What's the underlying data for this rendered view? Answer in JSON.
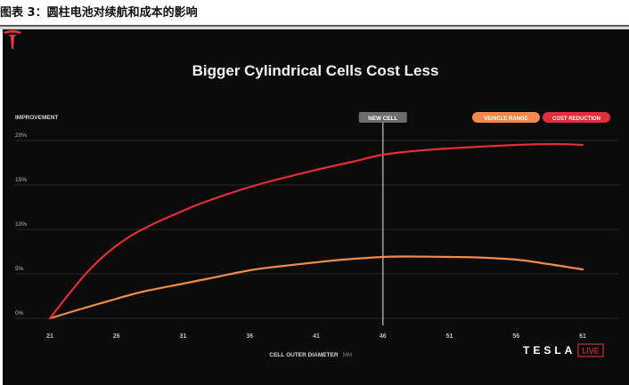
{
  "caption": "图表 3：圆柱电池对续航和成本的影响",
  "brand": {
    "wordmark": "TESLA",
    "live": "LIVE",
    "accent": "#e8383d"
  },
  "chart_data": {
    "type": "line",
    "title": "Bigger Cylindrical Cells Cost Less",
    "ylabel": "IMPROVEMENT",
    "xlabel": "CELL OUTER DIAMETER",
    "xunit": "MM",
    "x_ticks": [
      21,
      26,
      31,
      36,
      41,
      46,
      51,
      56,
      61
    ],
    "y_ticks": [
      "0%",
      "5%",
      "10%",
      "15%",
      "20%"
    ],
    "y_tick_values": [
      0,
      5,
      10,
      15,
      20
    ],
    "xlim": [
      21,
      61
    ],
    "ylim": [
      0,
      20
    ],
    "grid": true,
    "legend_position": "top-right",
    "marker": {
      "label": "NEW CELL",
      "x": 46
    },
    "series": [
      {
        "name": "VEHICLE RANGE",
        "color": "#f28a4a",
        "x": [
          21,
          23,
          26,
          28,
          31,
          33,
          36,
          38,
          41,
          43,
          46,
          48,
          51,
          53,
          56,
          58,
          61
        ],
        "y": [
          0,
          0.9,
          2.2,
          3.0,
          3.9,
          4.5,
          5.4,
          5.8,
          6.3,
          6.6,
          6.9,
          6.95,
          6.9,
          6.85,
          6.6,
          6.2,
          5.5
        ]
      },
      {
        "name": "COST REDUCTION",
        "color": "#e42d38",
        "x": [
          21,
          24,
          27,
          31,
          34,
          37,
          41,
          44,
          46,
          49,
          52,
          56,
          59,
          61
        ],
        "y": [
          0,
          5.5,
          9.2,
          12.1,
          13.8,
          15.2,
          16.7,
          17.7,
          18.4,
          18.9,
          19.2,
          19.5,
          19.6,
          19.5
        ]
      }
    ]
  }
}
